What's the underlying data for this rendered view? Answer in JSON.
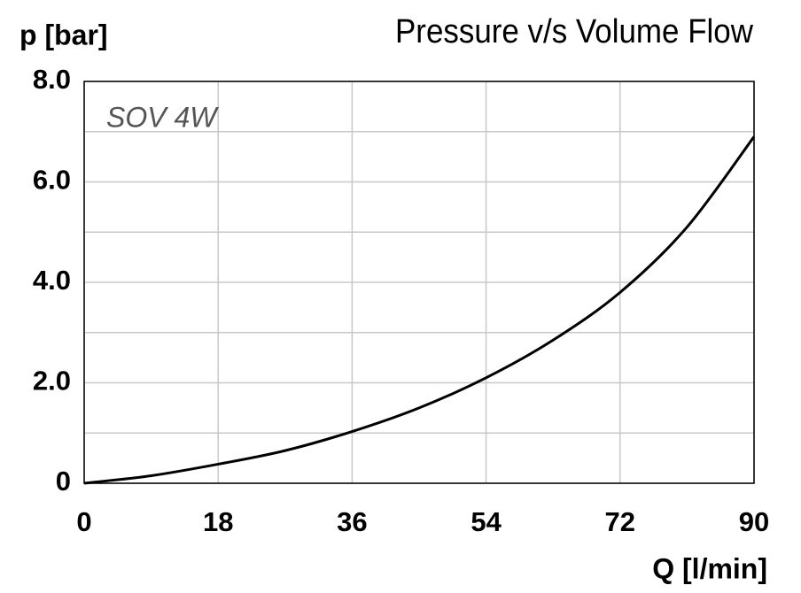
{
  "chart_data": {
    "type": "line",
    "title": "Pressure v/s Volume Flow",
    "y_label": "p [bar]",
    "x_label": "Q [l/min]",
    "annotation": "SOV 4W",
    "x": [
      0,
      9,
      18,
      27,
      36,
      45,
      54,
      63,
      72,
      81,
      90
    ],
    "series": [
      {
        "name": "SOV 4W",
        "color": "#000000",
        "values": [
          0,
          0.15,
          0.38,
          0.65,
          1.03,
          1.5,
          2.1,
          2.85,
          3.8,
          5.1,
          6.9
        ]
      }
    ],
    "xlim": [
      0,
      90
    ],
    "xticks": [
      0,
      18,
      36,
      54,
      72,
      90
    ],
    "ylim": [
      0,
      8
    ],
    "yticks": [
      0,
      {
        "value": 2,
        "label": "2.0"
      },
      {
        "value": 4,
        "label": "4.0"
      },
      {
        "value": 6,
        "label": "6.0"
      },
      {
        "value": 8,
        "label": "8.0"
      }
    ],
    "minor_yticks": [
      1,
      3,
      5,
      7
    ],
    "grid": true
  }
}
